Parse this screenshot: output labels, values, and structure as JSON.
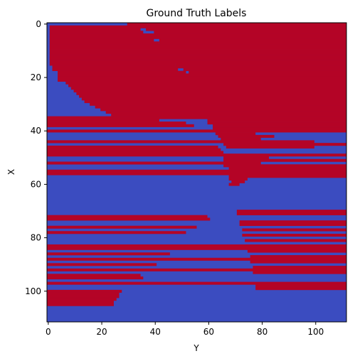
{
  "chart_data": {
    "type": "heatmap",
    "title": "Ground Truth Labels",
    "xlabel": "Y",
    "ylabel": "X",
    "xlim": [
      -0.5,
      111.5
    ],
    "ylim": [
      111.5,
      -0.5
    ],
    "x_ticks": [
      0,
      20,
      40,
      60,
      80,
      100
    ],
    "y_ticks": [
      0,
      20,
      40,
      60,
      80,
      100
    ],
    "grid": false,
    "colormap": "coolwarm",
    "colors": {
      "class_0": "#3b4cc0",
      "class_1": "#b40426"
    },
    "red_runs": [
      [
        0,
        30,
        112
      ],
      [
        1,
        1,
        112
      ],
      [
        2,
        1,
        35
      ],
      [
        2,
        37,
        112
      ],
      [
        3,
        1,
        36
      ],
      [
        3,
        40,
        112
      ],
      [
        4,
        1,
        112
      ],
      [
        5,
        1,
        112
      ],
      [
        6,
        1,
        40
      ],
      [
        6,
        42,
        112
      ],
      [
        7,
        1,
        42
      ],
      [
        7,
        42,
        112
      ],
      [
        8,
        1,
        112
      ],
      [
        9,
        1,
        112
      ],
      [
        10,
        1,
        112
      ],
      [
        11,
        1,
        112
      ],
      [
        12,
        1,
        112
      ],
      [
        13,
        1,
        112
      ],
      [
        14,
        1,
        112
      ],
      [
        15,
        1,
        48
      ],
      [
        15,
        48,
        112
      ],
      [
        16,
        2,
        112
      ],
      [
        17,
        2,
        49
      ],
      [
        17,
        51,
        112
      ],
      [
        18,
        4,
        52
      ],
      [
        18,
        53,
        112
      ],
      [
        19,
        4,
        112
      ],
      [
        20,
        4,
        112
      ],
      [
        21,
        4,
        112
      ],
      [
        22,
        7,
        112
      ],
      [
        23,
        8,
        112
      ],
      [
        24,
        9,
        112
      ],
      [
        25,
        10,
        112
      ],
      [
        26,
        11,
        112
      ],
      [
        27,
        12,
        112
      ],
      [
        28,
        13,
        112
      ],
      [
        29,
        14,
        112
      ],
      [
        30,
        16,
        112
      ],
      [
        31,
        18,
        112
      ],
      [
        32,
        20,
        112
      ],
      [
        33,
        22,
        112
      ],
      [
        34,
        24,
        112
      ],
      [
        35,
        0,
        112
      ],
      [
        36,
        0,
        42
      ],
      [
        36,
        60,
        112
      ],
      [
        37,
        0,
        52
      ],
      [
        37,
        60,
        112
      ],
      [
        38,
        0,
        55
      ],
      [
        38,
        62,
        112
      ],
      [
        39,
        62,
        112
      ],
      [
        40,
        0,
        62
      ],
      [
        40,
        62,
        112
      ],
      [
        41,
        63,
        78
      ],
      [
        42,
        64,
        85
      ],
      [
        43,
        65,
        80
      ],
      [
        44,
        0,
        100
      ],
      [
        45,
        66,
        112
      ],
      [
        46,
        0,
        64
      ],
      [
        46,
        67,
        100
      ],
      [
        47,
        0,
        65
      ],
      [
        48,
        0,
        66
      ],
      [
        49,
        0,
        112
      ],
      [
        50,
        66,
        83
      ],
      [
        51,
        66,
        112
      ],
      [
        52,
        0,
        80
      ],
      [
        53,
        66,
        112
      ],
      [
        54,
        68,
        112
      ],
      [
        55,
        0,
        112
      ],
      [
        56,
        0,
        112
      ],
      [
        57,
        68,
        112
      ],
      [
        58,
        68,
        75
      ],
      [
        59,
        69,
        74
      ],
      [
        60,
        68,
        72
      ],
      [
        70,
        71,
        112
      ],
      [
        71,
        71,
        112
      ],
      [
        72,
        0,
        60
      ],
      [
        73,
        0,
        61
      ],
      [
        74,
        72,
        112
      ],
      [
        75,
        72,
        112
      ],
      [
        76,
        0,
        56
      ],
      [
        77,
        73,
        112
      ],
      [
        78,
        0,
        52
      ],
      [
        79,
        73,
        112
      ],
      [
        81,
        74,
        112
      ],
      [
        83,
        0,
        112
      ],
      [
        84,
        0,
        112
      ],
      [
        85,
        75,
        112
      ],
      [
        86,
        0,
        46
      ],
      [
        87,
        76,
        112
      ],
      [
        88,
        0,
        112
      ],
      [
        89,
        76,
        112
      ],
      [
        90,
        0,
        41
      ],
      [
        91,
        77,
        112
      ],
      [
        92,
        0,
        112
      ],
      [
        93,
        77,
        112
      ],
      [
        94,
        0,
        35
      ],
      [
        95,
        0,
        36
      ],
      [
        97,
        0,
        112
      ],
      [
        98,
        78,
        112
      ],
      [
        99,
        78,
        112
      ],
      [
        100,
        0,
        28
      ],
      [
        101,
        0,
        27
      ],
      [
        102,
        0,
        27
      ],
      [
        103,
        0,
        26
      ],
      [
        104,
        0,
        25
      ],
      [
        105,
        0,
        25
      ]
    ]
  }
}
